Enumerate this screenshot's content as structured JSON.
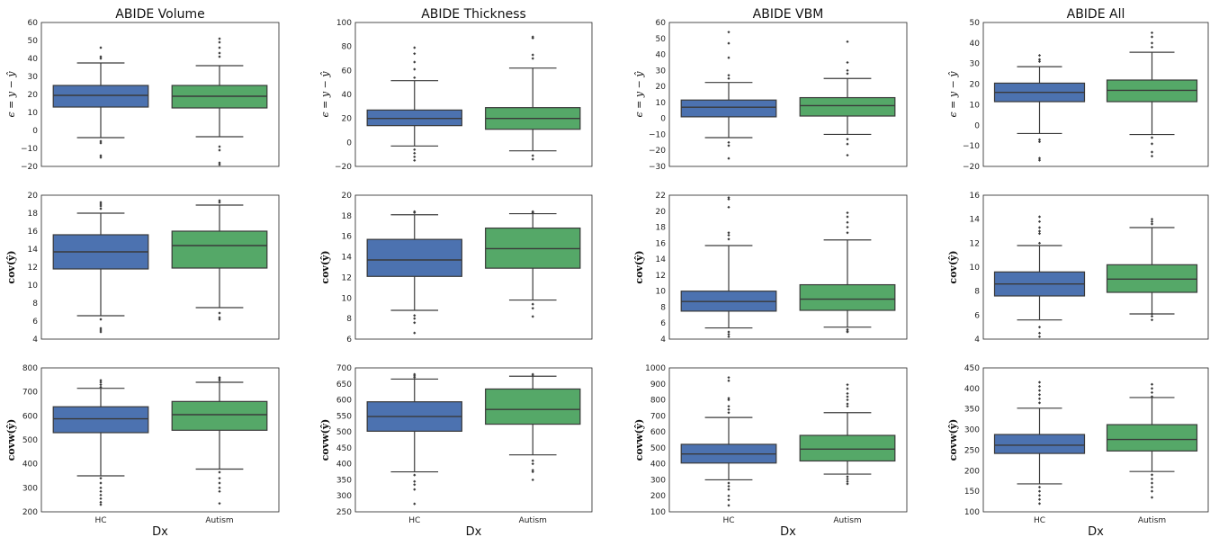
{
  "colors": {
    "HC": "#4c72b0",
    "Autism": "#55a868",
    "line": "#3a3a3a",
    "frame": "#222222"
  },
  "chart_data": [
    {
      "type": "box",
      "title": "ABIDE Volume",
      "xlabel": "",
      "ylabel": "ϵ = y − ŷ",
      "categories": [
        "HC",
        "Autism"
      ],
      "ylim": [
        -20,
        60
      ],
      "yticks": [
        -20,
        -10,
        0,
        10,
        20,
        30,
        40,
        50,
        60
      ],
      "boxes": [
        {
          "q1": 13,
          "median": 19.5,
          "q3": 25,
          "whislo": -4,
          "whishi": 37.5,
          "fliers": [
            46,
            41,
            40,
            -6,
            -7,
            -14,
            -15
          ]
        },
        {
          "q1": 12.5,
          "median": 19,
          "q3": 25,
          "whislo": -3.5,
          "whishi": 36,
          "fliers": [
            51,
            49,
            46,
            43,
            41,
            -9,
            -11,
            -18,
            -19
          ]
        }
      ]
    },
    {
      "type": "box",
      "title": "ABIDE Thickness",
      "xlabel": "",
      "ylabel": "ϵ = y − ŷ",
      "categories": [
        "HC",
        "Autism"
      ],
      "ylim": [
        -20,
        100
      ],
      "yticks": [
        -20,
        0,
        20,
        40,
        60,
        80,
        100
      ],
      "boxes": [
        {
          "q1": 14,
          "median": 20,
          "q3": 27,
          "whislo": -3,
          "whishi": 51.5,
          "fliers": [
            79,
            74,
            67,
            61,
            54,
            -6,
            -9,
            -12,
            -15
          ]
        },
        {
          "q1": 11,
          "median": 20,
          "q3": 29,
          "whislo": -7,
          "whishi": 62,
          "fliers": [
            88,
            87,
            73,
            70,
            -11,
            -14
          ]
        }
      ]
    },
    {
      "type": "box",
      "title": "ABIDE VBM",
      "xlabel": "",
      "ylabel": "ϵ = y − ŷ",
      "categories": [
        "HC",
        "Autism"
      ],
      "ylim": [
        -30,
        60
      ],
      "yticks": [
        -30,
        -20,
        -10,
        0,
        10,
        20,
        30,
        40,
        50,
        60
      ],
      "boxes": [
        {
          "q1": 1,
          "median": 7,
          "q3": 11.5,
          "whislo": -12,
          "whishi": 22.5,
          "fliers": [
            54,
            47,
            38,
            27,
            25,
            -15,
            -17,
            -25
          ]
        },
        {
          "q1": 1.5,
          "median": 8,
          "q3": 13,
          "whislo": -10,
          "whishi": 25,
          "fliers": [
            48,
            35,
            30,
            28,
            -13,
            -16,
            -23
          ]
        }
      ]
    },
    {
      "type": "box",
      "title": "ABIDE All",
      "xlabel": "",
      "ylabel": "ϵ = y − ŷ",
      "categories": [
        "HC",
        "Autism"
      ],
      "ylim": [
        -20,
        50
      ],
      "yticks": [
        -20,
        -10,
        0,
        10,
        20,
        30,
        40,
        50
      ],
      "boxes": [
        {
          "q1": 11.5,
          "median": 16,
          "q3": 20.5,
          "whislo": -4,
          "whishi": 28.5,
          "fliers": [
            34,
            32,
            31,
            -7,
            -8,
            -16,
            -17
          ]
        },
        {
          "q1": 11.5,
          "median": 17,
          "q3": 22,
          "whislo": -4.5,
          "whishi": 35.5,
          "fliers": [
            45,
            43,
            40,
            38,
            -6,
            -9,
            -13,
            -15
          ]
        }
      ]
    },
    {
      "type": "box",
      "title": "",
      "xlabel": "",
      "ylabel": "cov(ŷ)",
      "categories": [
        "HC",
        "Autism"
      ],
      "ylim": [
        4,
        20
      ],
      "yticks": [
        4,
        6,
        8,
        10,
        12,
        14,
        16,
        18,
        20
      ],
      "boxes": [
        {
          "q1": 11.8,
          "median": 13.7,
          "q3": 15.6,
          "whislo": 6.6,
          "whishi": 18,
          "fliers": [
            19.2,
            19,
            18.8,
            18.5,
            6.2,
            5.2,
            5,
            4.8
          ]
        },
        {
          "q1": 11.9,
          "median": 14.4,
          "q3": 16,
          "whislo": 7.5,
          "whishi": 18.9,
          "fliers": [
            19.4,
            19.2,
            6.9,
            6.4,
            6.2
          ]
        }
      ]
    },
    {
      "type": "box",
      "title": "",
      "xlabel": "",
      "ylabel": "cov(ŷ)",
      "categories": [
        "HC",
        "Autism"
      ],
      "ylim": [
        6,
        20
      ],
      "yticks": [
        6,
        8,
        10,
        12,
        14,
        16,
        18,
        20
      ],
      "boxes": [
        {
          "q1": 12.1,
          "median": 13.7,
          "q3": 15.7,
          "whislo": 8.8,
          "whishi": 18.1,
          "fliers": [
            18.4,
            18.3,
            8.3,
            8,
            7.6,
            6.6
          ]
        },
        {
          "q1": 12.9,
          "median": 14.8,
          "q3": 16.8,
          "whislo": 9.8,
          "whishi": 18.2,
          "fliers": [
            18.4,
            18.3,
            9.4,
            9,
            8.2
          ]
        }
      ]
    },
    {
      "type": "box",
      "title": "",
      "xlabel": "",
      "ylabel": "cov(ŷ)",
      "categories": [
        "HC",
        "Autism"
      ],
      "ylim": [
        4,
        22
      ],
      "yticks": [
        4,
        6,
        8,
        10,
        12,
        14,
        16,
        18,
        20,
        22
      ],
      "boxes": [
        {
          "q1": 7.5,
          "median": 8.7,
          "q3": 10,
          "whislo": 5.4,
          "whishi": 15.7,
          "fliers": [
            21.7,
            21.5,
            20.5,
            17.3,
            17,
            16.5,
            4.9,
            4.6,
            4.3
          ]
        },
        {
          "q1": 7.6,
          "median": 9,
          "q3": 10.8,
          "whislo": 5.5,
          "whishi": 16.4,
          "fliers": [
            19.8,
            19.3,
            18.6,
            18,
            17.3,
            5.2,
            5,
            4.9
          ]
        }
      ]
    },
    {
      "type": "box",
      "title": "",
      "xlabel": "",
      "ylabel": "cov(ŷ)",
      "categories": [
        "HC",
        "Autism"
      ],
      "ylim": [
        4,
        16
      ],
      "yticks": [
        4,
        6,
        8,
        10,
        12,
        14,
        16
      ],
      "boxes": [
        {
          "q1": 7.6,
          "median": 8.6,
          "q3": 9.6,
          "whislo": 5.6,
          "whishi": 11.8,
          "fliers": [
            14.2,
            13.8,
            13.3,
            13,
            12.8,
            12,
            5,
            4.5,
            4.2
          ]
        },
        {
          "q1": 7.9,
          "median": 9,
          "q3": 10.2,
          "whislo": 6.1,
          "whishi": 13.3,
          "fliers": [
            14,
            13.8,
            13.6,
            6.1,
            5.9,
            5.6
          ]
        }
      ]
    },
    {
      "type": "box",
      "title": "",
      "xlabel": "Dx",
      "ylabel": "covw(ŷ)",
      "categories": [
        "HC",
        "Autism"
      ],
      "ylim": [
        200,
        800
      ],
      "yticks": [
        200,
        300,
        400,
        500,
        600,
        700,
        800
      ],
      "boxes": [
        {
          "q1": 530,
          "median": 588,
          "q3": 638,
          "whislo": 350,
          "whishi": 715,
          "fliers": [
            748,
            740,
            730,
            720,
            340,
            320,
            300,
            285,
            270,
            255,
            240,
            230
          ]
        },
        {
          "q1": 540,
          "median": 605,
          "q3": 660,
          "whislo": 378,
          "whishi": 740,
          "fliers": [
            760,
            755,
            748,
            365,
            340,
            320,
            300,
            285,
            235
          ]
        }
      ]
    },
    {
      "type": "box",
      "title": "",
      "xlabel": "Dx",
      "ylabel": "covw(ŷ)",
      "categories": [
        "HC",
        "Autism"
      ],
      "ylim": [
        250,
        700
      ],
      "yticks": [
        250,
        300,
        350,
        400,
        450,
        500,
        550,
        600,
        650,
        700
      ],
      "boxes": [
        {
          "q1": 502,
          "median": 548,
          "q3": 594,
          "whislo": 375,
          "whishi": 665,
          "fliers": [
            680,
            675,
            670,
            365,
            345,
            335,
            320,
            275
          ]
        },
        {
          "q1": 524,
          "median": 570,
          "q3": 634,
          "whislo": 428,
          "whishi": 674,
          "fliers": [
            680,
            675,
            410,
            400,
            380,
            375,
            350
          ]
        }
      ]
    },
    {
      "type": "box",
      "title": "",
      "xlabel": "Dx",
      "ylabel": "covw(ŷ)",
      "categories": [
        "HC",
        "Autism"
      ],
      "ylim": [
        100,
        1000
      ],
      "yticks": [
        100,
        200,
        300,
        400,
        500,
        600,
        700,
        800,
        900,
        1000
      ],
      "boxes": [
        {
          "q1": 405,
          "median": 462,
          "q3": 522,
          "whislo": 300,
          "whishi": 690,
          "fliers": [
            940,
            920,
            810,
            800,
            760,
            740,
            720,
            280,
            260,
            240,
            200,
            175,
            140
          ]
        },
        {
          "q1": 418,
          "median": 492,
          "q3": 578,
          "whislo": 336,
          "whishi": 720,
          "fliers": [
            895,
            870,
            840,
            820,
            800,
            775,
            760,
            320,
            305,
            290,
            275
          ]
        }
      ]
    },
    {
      "type": "box",
      "title": "",
      "xlabel": "Dx",
      "ylabel": "covw(ŷ)",
      "categories": [
        "HC",
        "Autism"
      ],
      "ylim": [
        100,
        450
      ],
      "yticks": [
        100,
        150,
        200,
        250,
        300,
        350,
        400,
        450
      ],
      "boxes": [
        {
          "q1": 242,
          "median": 262,
          "q3": 288,
          "whislo": 168,
          "whishi": 352,
          "fliers": [
            415,
            405,
            395,
            385,
            375,
            365,
            160,
            150,
            140,
            130,
            120
          ]
        },
        {
          "q1": 248,
          "median": 276,
          "q3": 312,
          "whislo": 198,
          "whishi": 378,
          "fliers": [
            410,
            400,
            390,
            380,
            190,
            180,
            170,
            160,
            150,
            135
          ]
        }
      ]
    }
  ]
}
